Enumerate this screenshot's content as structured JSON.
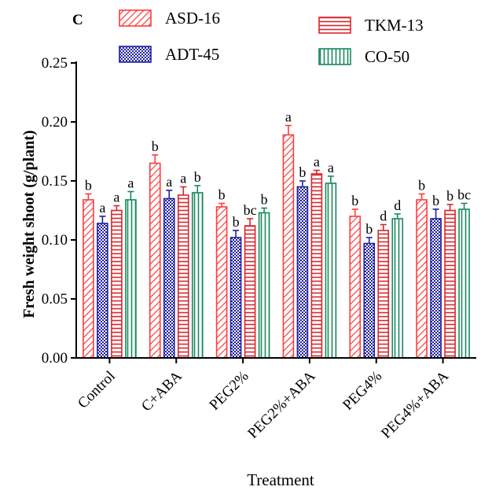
{
  "chart_data": {
    "type": "bar",
    "panel_label": "C",
    "title": "",
    "xlabel": "Treatment",
    "ylabel": "Fresh weight shoot (g/plant)",
    "ylim": [
      0,
      0.25
    ],
    "yticks": [
      "0.00",
      "0.05",
      "0.10",
      "0.15",
      "0.20",
      "0.25"
    ],
    "grid": false,
    "legend_position": "top",
    "categories": [
      "Control",
      "C+ABA",
      "PEG2%",
      "PEG2%+ABA",
      "PEG4%",
      "PEG4%+ABA"
    ],
    "series": [
      {
        "name": "ASD-16",
        "color": "#ff3b3b",
        "pattern": "diagonal-hatch",
        "values": [
          0.134,
          0.165,
          0.128,
          0.189,
          0.12,
          0.134
        ],
        "errors": [
          0.005,
          0.007,
          0.003,
          0.008,
          0.006,
          0.005
        ],
        "letters": [
          "b",
          "b",
          "b",
          "a",
          "b",
          "b"
        ]
      },
      {
        "name": "ADT-45",
        "color": "#1f1f9f",
        "pattern": "crosshatch",
        "values": [
          0.114,
          0.135,
          0.102,
          0.145,
          0.097,
          0.118
        ],
        "errors": [
          0.006,
          0.007,
          0.006,
          0.005,
          0.005,
          0.008
        ],
        "letters": [
          "a",
          "a",
          "b",
          "b",
          "b",
          "b"
        ]
      },
      {
        "name": "TKM-13",
        "color": "#d8262c",
        "pattern": "horizontal-lines",
        "values": [
          0.125,
          0.138,
          0.112,
          0.156,
          0.108,
          0.125
        ],
        "errors": [
          0.004,
          0.007,
          0.006,
          0.003,
          0.005,
          0.005
        ],
        "letters": [
          "a",
          "a",
          "bc",
          "a",
          "d",
          "b"
        ]
      },
      {
        "name": "CO-50",
        "color": "#178a5c",
        "pattern": "vertical-lines",
        "values": [
          0.134,
          0.14,
          0.123,
          0.148,
          0.118,
          0.126
        ],
        "errors": [
          0.007,
          0.006,
          0.004,
          0.006,
          0.004,
          0.005
        ],
        "letters": [
          "a",
          "b",
          "b",
          "a",
          "d",
          "bc"
        ]
      }
    ]
  }
}
